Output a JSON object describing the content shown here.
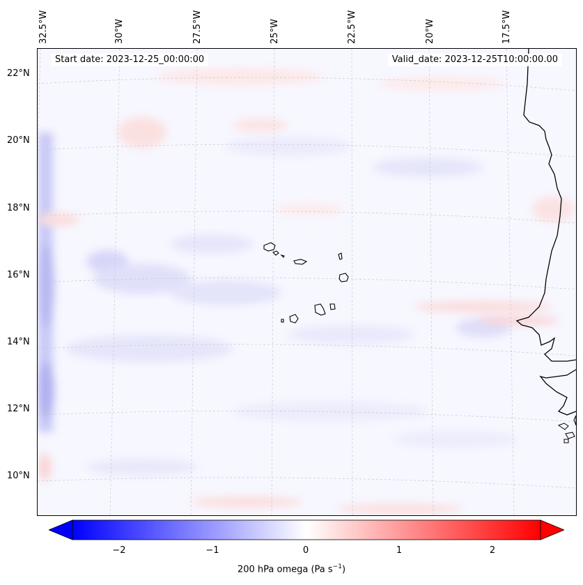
{
  "header": {
    "start_date": "Start date: 2023-12-25_00:00:00",
    "valid_date": "Valid_date: 2023-12-25T10:00:00.00"
  },
  "axes": {
    "lon_labels": [
      "32.5°W",
      "30°W",
      "27.5°W",
      "25°W",
      "22.5°W",
      "20°W",
      "17.5°W"
    ],
    "lat_labels": [
      "22°N",
      "20°N",
      "18°N",
      "16°N",
      "14°N",
      "12°N",
      "10°N"
    ]
  },
  "colorbar": {
    "label": "200 hPa omega (Pa s",
    "label_sup": "−1",
    "label_end": ")",
    "ticks": [
      "−2",
      "−1",
      "0",
      "1",
      "2"
    ],
    "range": [
      -2.6,
      2.6
    ],
    "extend": "both",
    "cmap": "bwr",
    "colors": {
      "negative": "#0000ff",
      "neutral": "#ffffff",
      "positive": "#ff0000"
    }
  },
  "map": {
    "field": "200 hPa omega",
    "projection": "Lambert conformal",
    "coastlines": true,
    "gridlines": true
  }
}
